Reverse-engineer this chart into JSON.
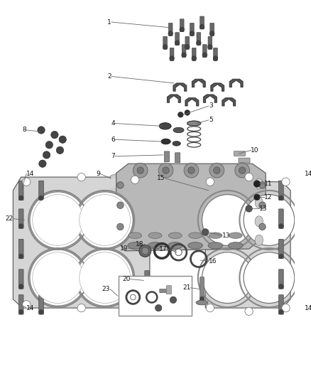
{
  "bg_color": "#ffffff",
  "fig_width": 4.38,
  "fig_height": 5.33,
  "dpi": 100,
  "lc": "#555555",
  "bc": "#666666",
  "gc": "#888888",
  "hc": "#777777"
}
